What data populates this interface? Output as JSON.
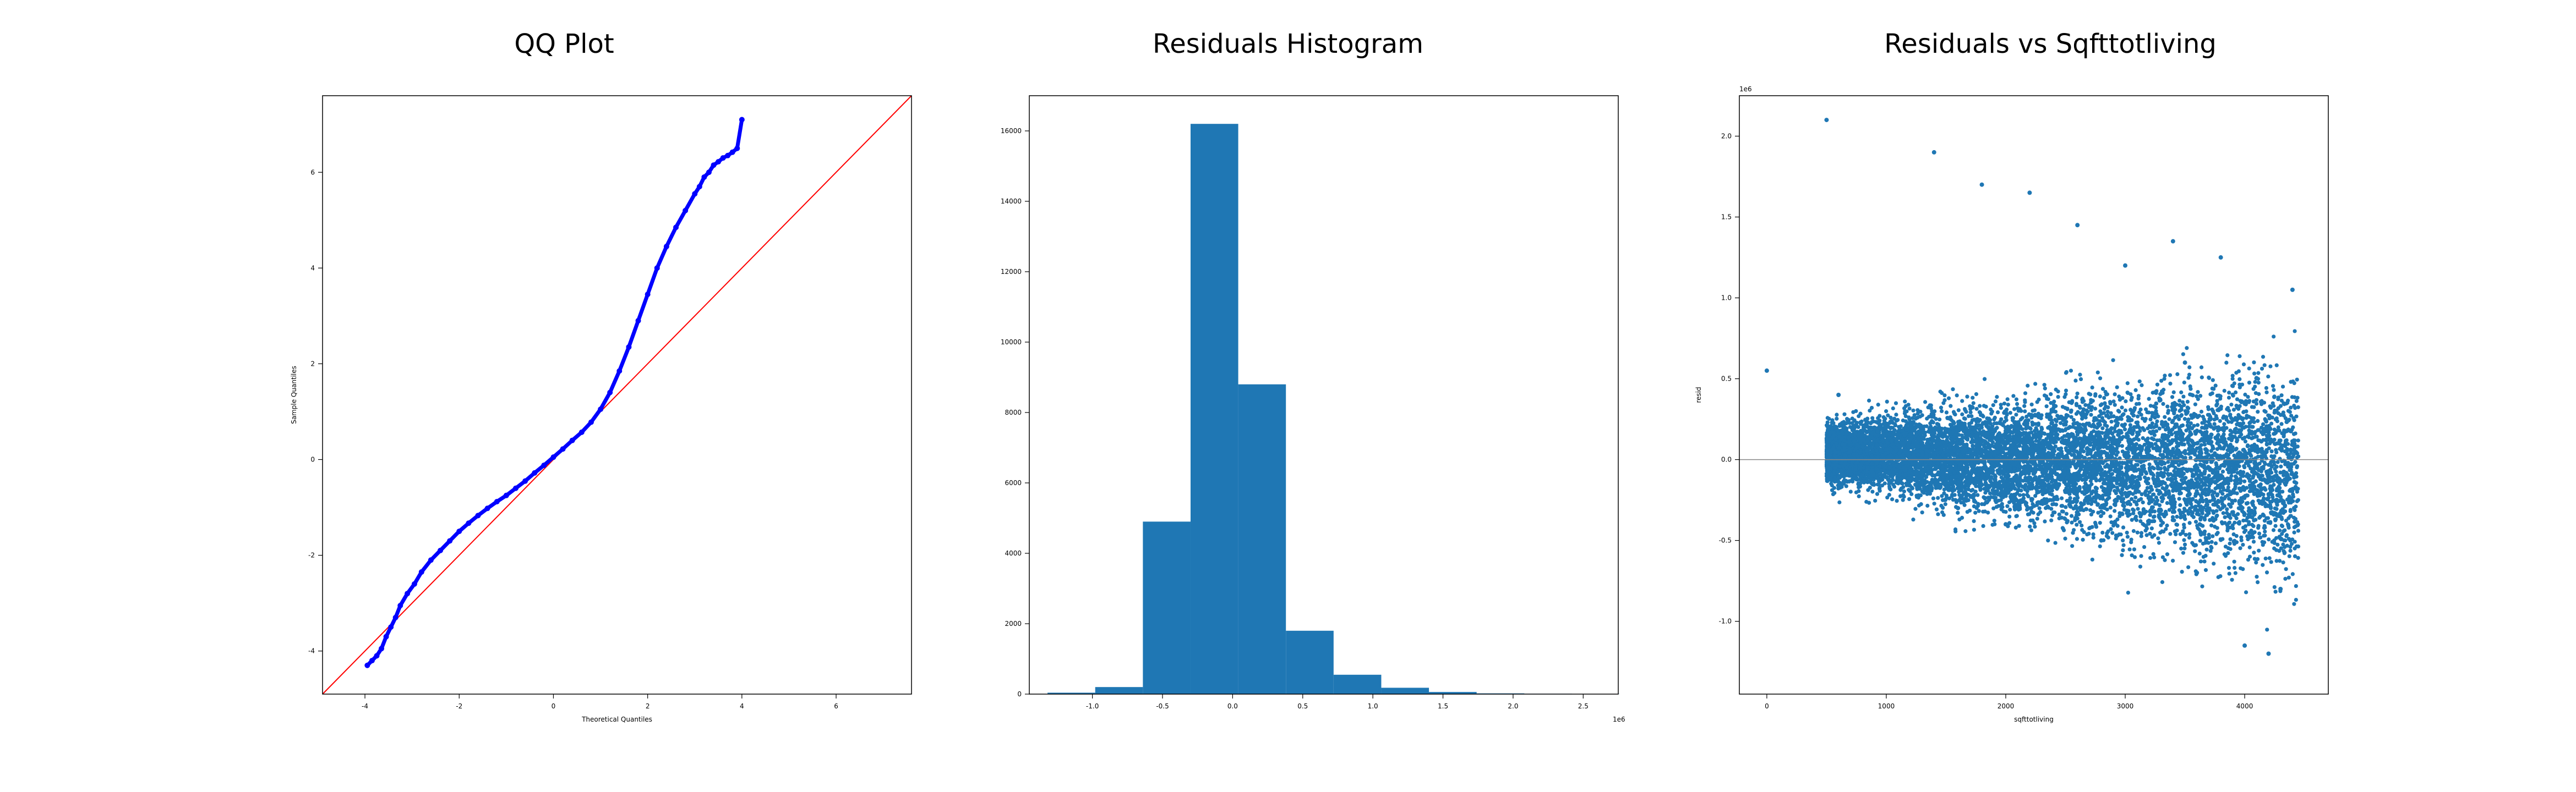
{
  "chart_data": [
    {
      "type": "scatter",
      "title": "QQ Plot",
      "xlabel": "Theoretical Quantiles",
      "ylabel": "Sample Quantiles",
      "xlim": [
        -4.9,
        7.6
      ],
      "ylim": [
        -4.9,
        7.6
      ],
      "xticks": [
        -4,
        -2,
        0,
        2,
        4,
        6
      ],
      "yticks": [
        -4,
        -2,
        0,
        2,
        4,
        6
      ],
      "marker_color": "#0000ff",
      "reference_line": {
        "x": [
          -4.9,
          7.6
        ],
        "y": [
          -4.9,
          7.6
        ],
        "color": "#ff0000"
      },
      "points": {
        "x": [
          -3.95,
          -3.85,
          -3.75,
          -3.65,
          -3.55,
          -3.45,
          -3.35,
          -3.25,
          -3.1,
          -2.95,
          -2.8,
          -2.6,
          -2.4,
          -2.2,
          -2.0,
          -1.8,
          -1.6,
          -1.4,
          -1.2,
          -1.0,
          -0.8,
          -0.6,
          -0.4,
          -0.2,
          0.0,
          0.2,
          0.4,
          0.6,
          0.8,
          1.0,
          1.2,
          1.4,
          1.6,
          1.8,
          2.0,
          2.2,
          2.4,
          2.6,
          2.8,
          3.0,
          3.1,
          3.2,
          3.3,
          3.4,
          3.5,
          3.6,
          3.7,
          3.8,
          3.9,
          4.0
        ],
        "y": [
          -4.3,
          -4.2,
          -4.1,
          -3.95,
          -3.7,
          -3.5,
          -3.3,
          -3.05,
          -2.8,
          -2.6,
          -2.35,
          -2.1,
          -1.9,
          -1.7,
          -1.5,
          -1.33,
          -1.17,
          -1.02,
          -0.88,
          -0.75,
          -0.6,
          -0.45,
          -0.28,
          -0.12,
          0.05,
          0.22,
          0.4,
          0.57,
          0.78,
          1.05,
          1.4,
          1.85,
          2.35,
          2.9,
          3.45,
          4.0,
          4.45,
          4.85,
          5.2,
          5.55,
          5.7,
          5.9,
          6.0,
          6.15,
          6.22,
          6.3,
          6.35,
          6.42,
          6.5,
          7.1
        ]
      }
    },
    {
      "type": "bar",
      "title": "Residuals Histogram",
      "ylim": [
        0,
        17000
      ],
      "xlim": [
        -1.45,
        2.75
      ],
      "offset_text": "1e6",
      "xticks": [
        "-1.0",
        "-0.5",
        "0.0",
        "0.5",
        "1.0",
        "1.5",
        "2.0",
        "2.5"
      ],
      "xtick_values": [
        -1.0,
        -0.5,
        0.0,
        0.5,
        1.0,
        1.5,
        2.0,
        2.5
      ],
      "yticks": [
        0,
        2000,
        4000,
        6000,
        8000,
        10000,
        12000,
        14000,
        16000
      ],
      "bar_color": "#1f77b4",
      "bin_edges": [
        -1.32,
        -0.98,
        -0.64,
        -0.3,
        0.04,
        0.38,
        0.72,
        1.06,
        1.4,
        1.74,
        2.08,
        2.42,
        2.76
      ],
      "values": [
        40,
        200,
        4900,
        16200,
        8800,
        1800,
        550,
        180,
        60,
        20,
        10,
        5
      ]
    },
    {
      "type": "scatter",
      "title": "Residuals vs Sqfttotliving",
      "xlabel": "sqfttotliving",
      "ylabel": "resid",
      "offset_text": "1e6",
      "xlim": [
        -230,
        4700
      ],
      "ylim": [
        -1.45,
        2.25
      ],
      "xticks": [
        0,
        1000,
        2000,
        3000,
        4000
      ],
      "yticks": [
        "-1.0",
        "-0.5",
        "0.0",
        "0.5",
        "1.0",
        "1.5",
        "2.0"
      ],
      "ytick_values": [
        -1.0,
        -0.5,
        0.0,
        0.5,
        1.0,
        1.5,
        2.0
      ],
      "marker_color": "#1f77b4",
      "hline": 0.0,
      "points": {
        "x": [
          0,
          500,
          800,
          1000,
          1200,
          1400,
          1600,
          1800,
          2000,
          2200,
          2400,
          2600,
          2800,
          3000,
          3200,
          3400,
          3600,
          3800,
          4000,
          4200,
          4400,
          600,
          900,
          1500,
          2500,
          3500,
          4300
        ],
        "y": [
          0.55,
          2.1,
          -0.1,
          0.2,
          0.15,
          1.9,
          -0.3,
          1.7,
          -0.4,
          1.65,
          0.3,
          1.45,
          -0.5,
          1.2,
          0.1,
          1.35,
          -0.7,
          1.25,
          -1.15,
          -1.2,
          1.05,
          0.4,
          0.0,
          0.05,
          -0.2,
          0.6,
          -0.8
        ]
      }
    }
  ]
}
